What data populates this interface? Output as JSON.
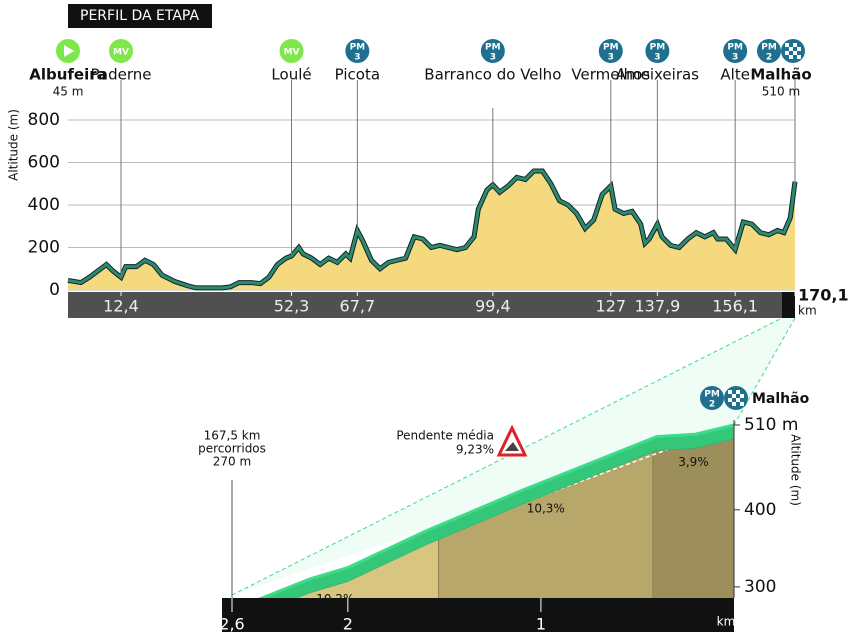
{
  "chart_data": [
    {
      "type": "area",
      "title": "PERFIL DA ETAPA",
      "y_label": "Altitude (m)",
      "x_unit": "km",
      "x": [
        0,
        3,
        5,
        7,
        9,
        10.5,
        12.4,
        13.5,
        16,
        18,
        20,
        22,
        25,
        28,
        30,
        33,
        36,
        38,
        40,
        43,
        45,
        47,
        49,
        51,
        52.3,
        54,
        55,
        57,
        59,
        61,
        63,
        65,
        66,
        67.7,
        69,
        71,
        73,
        75,
        77,
        79,
        81,
        83,
        85,
        87,
        89,
        91,
        93,
        95,
        96,
        98,
        99.4,
        101,
        103,
        105,
        107,
        109,
        111,
        113,
        115,
        117,
        119,
        121,
        123,
        125,
        127,
        128,
        130,
        132,
        134,
        135,
        136,
        137.9,
        139,
        141,
        143,
        145,
        147,
        149,
        151,
        152,
        154,
        156.1,
        158,
        160,
        162,
        164,
        166,
        167.5,
        169,
        170.1
      ],
      "values": [
        45,
        35,
        60,
        90,
        120,
        90,
        60,
        110,
        110,
        140,
        120,
        70,
        40,
        20,
        10,
        10,
        10,
        15,
        35,
        35,
        30,
        60,
        120,
        150,
        160,
        200,
        170,
        150,
        120,
        150,
        130,
        170,
        150,
        280,
        230,
        140,
        100,
        130,
        140,
        150,
        250,
        240,
        200,
        210,
        200,
        190,
        200,
        250,
        380,
        470,
        495,
        460,
        490,
        530,
        520,
        560,
        560,
        500,
        420,
        400,
        360,
        290,
        330,
        450,
        490,
        380,
        360,
        370,
        310,
        220,
        240,
        310,
        250,
        210,
        200,
        240,
        270,
        250,
        270,
        240,
        240,
        190,
        320,
        310,
        270,
        260,
        280,
        270,
        340,
        510
      ],
      "color": "#2e8b6a",
      "fill": "#f5d97e",
      "xlim": [
        0,
        170.1
      ],
      "ylim": [
        0,
        800
      ],
      "yticks": [
        0,
        200,
        400,
        600,
        800
      ],
      "xticks": [
        {
          "value": 12.4,
          "label": "12,4"
        },
        {
          "value": 52.3,
          "label": "52,3"
        },
        {
          "value": 67.7,
          "label": "67,7"
        },
        {
          "value": 99.4,
          "label": "99,4"
        },
        127,
        {
          "value": 137.9,
          "label": "137,9"
        },
        {
          "value": 156.1,
          "label": "156,1"
        },
        {
          "value": 170.1,
          "label": "170,1"
        }
      ],
      "grid": true,
      "start": {
        "name": "Albufeira",
        "elevation_label": "45 m"
      },
      "waypoints": [
        {
          "name": "Paderne",
          "badge": [
            "MV"
          ]
        },
        {
          "name": "Loulé",
          "badge": [
            "MV"
          ]
        },
        {
          "name": "Picota",
          "badge": [
            "PM",
            "3"
          ]
        },
        {
          "name": "Barranco do Velho",
          "badge": [
            "PM",
            "3"
          ]
        },
        {
          "name": "Vermelhos",
          "badge": [
            "PM",
            "3"
          ]
        },
        {
          "name": "Ameixeiras",
          "badge": [
            "PM",
            "3"
          ]
        },
        {
          "name": "Alte",
          "badge": [
            "PM",
            "3"
          ]
        },
        {
          "name": "Malhão",
          "badge": [
            "PM",
            "2"
          ],
          "elevation_label": "510 m"
        }
      ]
    },
    {
      "type": "area",
      "title": "Malhão",
      "badge": [
        "PM",
        "2"
      ],
      "y_label": "Altitude (m)",
      "x_unit": "km",
      "x": [
        2.6,
        2.2,
        2.0,
        1.6,
        1.1,
        0.9,
        0.5,
        0.4,
        0.2,
        0
      ],
      "values": [
        270,
        310,
        325,
        372,
        425,
        445,
        485,
        495,
        498,
        510
      ],
      "color": "#3ddc8a",
      "xlim": [
        2.6,
        0
      ],
      "ylim": [
        270,
        510
      ],
      "xticks": [
        {
          "value": 2.6,
          "label": "2,6"
        },
        2,
        1
      ],
      "yticks": [
        300,
        400,
        {
          "value": 510,
          "label": "510 m"
        }
      ],
      "start_label": [
        "167,5 km",
        "percorridos",
        "270 m"
      ],
      "average": {
        "label": "Pendente média",
        "value": 9.23,
        "value_label": "9,23%"
      },
      "segments": [
        {
          "from": 2.6,
          "to": 1.53,
          "gradient": 10.2,
          "label": "10,2%",
          "fill": "#d8c580"
        },
        {
          "from": 1.53,
          "to": 0.42,
          "gradient": 10.3,
          "label": "10,3%",
          "fill": "#b8a76b"
        },
        {
          "from": 0.42,
          "to": 0,
          "gradient": 3.9,
          "label": "3,9%",
          "fill": "#9d8f5c"
        }
      ]
    }
  ]
}
